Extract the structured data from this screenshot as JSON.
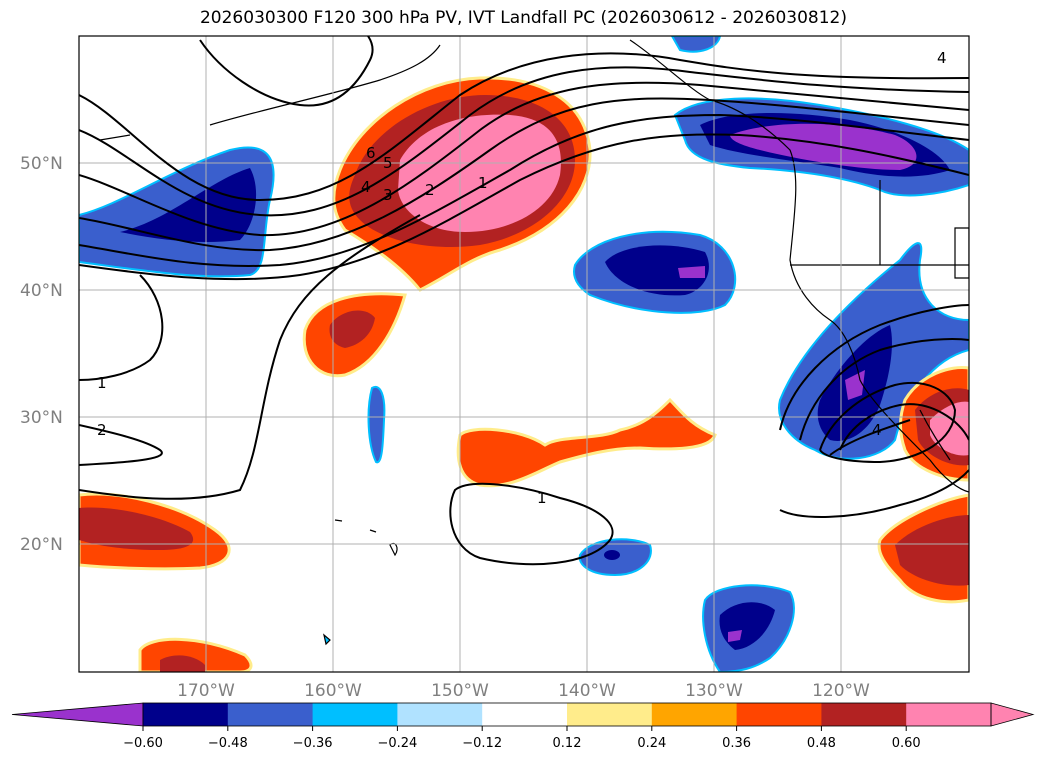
{
  "title": "2026030300 F120 300 hPa PV, IVT Landfall PC (2026030612 - 2026030812)",
  "map": {
    "lat_labels": [
      "50°N",
      "40°N",
      "30°N",
      "20°N"
    ],
    "lon_labels": [
      "170°W",
      "160°W",
      "150°W",
      "140°W",
      "130°W",
      "120°W"
    ],
    "gridlines": true,
    "contour_labels": [
      "6",
      "5",
      "4",
      "3",
      "2",
      "1",
      "1",
      "2",
      "1",
      "4",
      "4"
    ]
  },
  "colorbar": {
    "colors": [
      "#9a32cd",
      "#00008b",
      "#3a5fcd",
      "#00bfff",
      "#b0e2ff",
      "#ffffff",
      "#ffec8b",
      "#ffa500",
      "#ff4500",
      "#b22222",
      "#ff83b0",
      "#ff83b0"
    ],
    "ticks": [
      "−0.60",
      "−0.48",
      "−0.36",
      "−0.24",
      "−0.12",
      "0.12",
      "0.24",
      "0.36",
      "0.48",
      "0.60"
    ]
  }
}
